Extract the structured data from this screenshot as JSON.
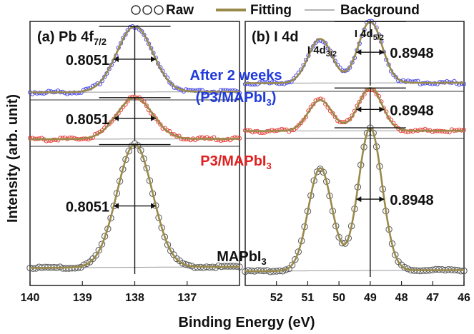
{
  "legend": {
    "raw": "Raw",
    "fitting": "Fitting",
    "background": "Background"
  },
  "colors": {
    "raw_mapbi3": "#555555",
    "raw_p3": "#e8413c",
    "raw_aged": "#4a4ae8",
    "fit": "#9a8a4a",
    "background": "#999999",
    "label_aged": "#1f3bdc",
    "label_p3": "#e02020",
    "text": "#111111"
  },
  "axis": {
    "xlabel": "Binding Energy (eV)",
    "ylabel": "Intensity (arb. unit)"
  },
  "chart_data": [
    {
      "type": "line",
      "panel_label": "(a) Pb 4f",
      "panel_subscript": "7/2",
      "xlim": [
        140,
        136
      ],
      "xticks": [
        140,
        139,
        138,
        137
      ],
      "peaks": [
        138.0
      ],
      "fwhm": 0.8051,
      "fwhm_labels": [
        "0.8051",
        "0.8051",
        "0.8051"
      ],
      "series": [
        {
          "name": "After 2 weeks (P3/MAPbI3)",
          "amplitude": 0.3,
          "baseline": 0.05
        },
        {
          "name": "P3/MAPbI3",
          "amplitude": 0.3,
          "baseline": 0.05
        },
        {
          "name": "MAPbI3",
          "amplitude": 1.0,
          "baseline": 0.05
        }
      ]
    },
    {
      "type": "line",
      "panel_label": "(b) I 4d",
      "xlim": [
        53,
        46
      ],
      "xticks": [
        52,
        51,
        50,
        49,
        48,
        47,
        46
      ],
      "peaks": [
        50.6,
        49.0
      ],
      "peak_ratio": 0.72,
      "fwhm": 0.8948,
      "fwhm_labels": [
        "0.8948",
        "0.8948",
        "0.8948"
      ],
      "peak_labels": {
        "d32": "I 4d",
        "d32_sub": "3/2",
        "d52": "I 4d",
        "d52_sub": "5/2"
      },
      "series": [
        {
          "name": "After 2 weeks (P3/MAPbI3)",
          "amplitude": 0.3,
          "baseline": 0.04
        },
        {
          "name": "P3/MAPbI3",
          "amplitude": 0.3,
          "baseline": 0.04
        },
        {
          "name": "MAPbI3",
          "amplitude": 1.0,
          "baseline": 0.04
        }
      ]
    }
  ],
  "annotations": {
    "aged_line1": "After 2 weeks",
    "aged_line2": "(P3/MAPbI",
    "aged_line2_sub": "3",
    "aged_line2_end": ")",
    "p3": "P3/MAPbI",
    "p3_sub": "3",
    "mapbi3": "MAPbI",
    "mapbi3_sub": "3"
  }
}
